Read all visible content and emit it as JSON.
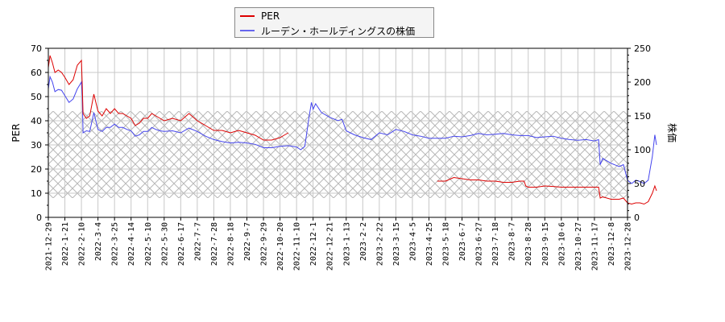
{
  "legend": {
    "items": [
      {
        "label": "PER",
        "color": "#dd0000"
      },
      {
        "label": "ルーデン・ホールディングスの株価",
        "color": "#4444ee"
      }
    ]
  },
  "axes": {
    "left_title": "PER",
    "right_title": "株価"
  },
  "chart_data": {
    "type": "line",
    "title": "",
    "xlabel": "",
    "ylabel": "PER",
    "y2label": "株価",
    "ylim": [
      0,
      70
    ],
    "y2lim": [
      0,
      250
    ],
    "yticks": [
      0,
      10,
      20,
      30,
      40,
      50,
      60,
      70
    ],
    "y2ticks": [
      0,
      50,
      100,
      150,
      200,
      250
    ],
    "grid": true,
    "hatched_band_per": [
      8,
      44
    ],
    "xticks": [
      "2021-12-29",
      "2022-1-21",
      "2022-2-10",
      "2022-3-4",
      "2022-3-25",
      "2022-4-14",
      "2022-5-10",
      "2022-5-30",
      "2022-6-17",
      "2022-7-7",
      "2022-7-28",
      "2022-8-18",
      "2022-9-7",
      "2022-9-29",
      "2022-10-20",
      "2022-11-10",
      "2022-12-1",
      "2022-12-21",
      "2023-1-13",
      "2023-2-2",
      "2023-2-22",
      "2023-3-15",
      "2023-4-5",
      "2023-4-25",
      "2023-5-18",
      "2023-6-7",
      "2023-6-27",
      "2023-7-18",
      "2023-8-7",
      "2023-8-28",
      "2023-9-15",
      "2023-10-6",
      "2023-10-27",
      "2023-11-17",
      "2023-12-8",
      "2023-12-28"
    ],
    "series": [
      {
        "name": "PER",
        "axis": "left",
        "color": "#dd0000",
        "segments": [
          [
            [
              0,
              62
            ],
            [
              0.2,
              67
            ],
            [
              0.5,
              64
            ],
            [
              0.8,
              60
            ],
            [
              1.2,
              61
            ],
            [
              1.6,
              60
            ],
            [
              2,
              58
            ],
            [
              2.5,
              55
            ],
            [
              3,
              57
            ],
            [
              3.5,
              63
            ],
            [
              4,
              65
            ],
            [
              4.1,
              55
            ],
            [
              4.2,
              43
            ],
            [
              4.6,
              41
            ],
            [
              5,
              42
            ],
            [
              5.5,
              51
            ],
            [
              6,
              44
            ],
            [
              6.5,
              42
            ],
            [
              7,
              45
            ],
            [
              7.5,
              43
            ],
            [
              8,
              45
            ],
            [
              8.5,
              43
            ],
            [
              9,
              43
            ],
            [
              9.5,
              42
            ],
            [
              10,
              41
            ],
            [
              10.5,
              38
            ],
            [
              11,
              39
            ],
            [
              11.5,
              41
            ],
            [
              12,
              41
            ],
            [
              12.5,
              43
            ],
            [
              13,
              42
            ],
            [
              13.5,
              41
            ],
            [
              14,
              40
            ],
            [
              15,
              41
            ],
            [
              16,
              40
            ],
            [
              17,
              43
            ],
            [
              18,
              40
            ],
            [
              19,
              38
            ],
            [
              20,
              36
            ],
            [
              21,
              36
            ],
            [
              22,
              35
            ],
            [
              23,
              36
            ],
            [
              24,
              35
            ],
            [
              25,
              34
            ],
            [
              26,
              32
            ],
            [
              27,
              32
            ],
            [
              28,
              33
            ],
            [
              28.5,
              34
            ],
            [
              29,
              35
            ]
          ]
        ],
        "segments_late": [
          [
            [
              47,
              15
            ],
            [
              48,
              15
            ],
            [
              49,
              16.5
            ],
            [
              50,
              16
            ],
            [
              51,
              15.5
            ],
            [
              52,
              15.5
            ],
            [
              53,
              15
            ],
            [
              54,
              15
            ],
            [
              55,
              14.5
            ],
            [
              56,
              14.5
            ],
            [
              57,
              15
            ],
            [
              57.5,
              15
            ],
            [
              57.7,
              13
            ],
            [
              58,
              12.5
            ],
            [
              59,
              12.5
            ],
            [
              60,
              13
            ],
            [
              61,
              12.8
            ],
            [
              62,
              12.5
            ],
            [
              63,
              12.5
            ],
            [
              64,
              12.5
            ],
            [
              65,
              12.5
            ],
            [
              66,
              12.5
            ],
            [
              66.5,
              12.5
            ],
            [
              66.7,
              8
            ],
            [
              67,
              8.5
            ],
            [
              68,
              7.5
            ],
            [
              69,
              7.5
            ],
            [
              69.5,
              8
            ],
            [
              70,
              6
            ],
            [
              70.5,
              5.5
            ],
            [
              71,
              6
            ],
            [
              71.5,
              6
            ],
            [
              72,
              5.5
            ],
            [
              72.5,
              6.5
            ],
            [
              73,
              10
            ],
            [
              73.3,
              13
            ],
            [
              73.5,
              11
            ]
          ]
        ]
      },
      {
        "name": "ルーデン・ホールディングスの株価",
        "axis": "right",
        "color": "#4444ee",
        "points": [
          [
            0,
            190
          ],
          [
            0.2,
            208
          ],
          [
            0.5,
            200
          ],
          [
            0.8,
            186
          ],
          [
            1.2,
            189
          ],
          [
            1.6,
            188
          ],
          [
            2,
            180
          ],
          [
            2.5,
            170
          ],
          [
            3,
            175
          ],
          [
            3.5,
            190
          ],
          [
            4,
            200
          ],
          [
            4.1,
            180
          ],
          [
            4.2,
            125
          ],
          [
            4.6,
            128
          ],
          [
            5,
            127
          ],
          [
            5.5,
            155
          ],
          [
            6,
            130
          ],
          [
            6.5,
            127
          ],
          [
            7,
            133
          ],
          [
            7.5,
            133
          ],
          [
            8,
            138
          ],
          [
            8.5,
            133
          ],
          [
            9,
            133
          ],
          [
            9.5,
            130
          ],
          [
            10,
            128
          ],
          [
            10.5,
            120
          ],
          [
            11,
            122
          ],
          [
            11.5,
            127
          ],
          [
            12,
            127
          ],
          [
            12.5,
            133
          ],
          [
            13,
            130
          ],
          [
            13.5,
            128
          ],
          [
            14,
            127
          ],
          [
            15,
            128
          ],
          [
            16,
            125
          ],
          [
            17,
            132
          ],
          [
            18,
            127
          ],
          [
            19,
            120
          ],
          [
            20,
            115
          ],
          [
            21,
            112
          ],
          [
            22,
            110
          ],
          [
            23,
            111
          ],
          [
            24,
            110
          ],
          [
            25,
            108
          ],
          [
            26,
            103
          ],
          [
            27,
            103
          ],
          [
            28,
            105
          ],
          [
            29,
            106
          ],
          [
            30,
            104
          ],
          [
            30.5,
            100
          ],
          [
            31,
            105
          ],
          [
            31.5,
            148
          ],
          [
            31.8,
            170
          ],
          [
            32,
            160
          ],
          [
            32.3,
            168
          ],
          [
            33,
            155
          ],
          [
            34,
            148
          ],
          [
            35,
            143
          ],
          [
            35.5,
            145
          ],
          [
            36,
            128
          ],
          [
            37,
            122
          ],
          [
            38,
            118
          ],
          [
            39,
            115
          ],
          [
            40,
            125
          ],
          [
            41,
            122
          ],
          [
            42,
            130
          ],
          [
            43,
            127
          ],
          [
            44,
            122
          ],
          [
            45,
            120
          ],
          [
            46,
            117
          ],
          [
            47,
            117
          ],
          [
            48,
            117
          ],
          [
            49,
            120
          ],
          [
            50,
            119
          ],
          [
            51,
            121
          ],
          [
            52,
            124
          ],
          [
            53,
            122
          ],
          [
            54,
            123
          ],
          [
            55,
            124
          ],
          [
            56,
            122
          ],
          [
            57,
            121
          ],
          [
            58,
            121
          ],
          [
            59,
            118
          ],
          [
            60,
            119
          ],
          [
            61,
            120
          ],
          [
            62,
            117
          ],
          [
            63,
            115
          ],
          [
            64,
            114
          ],
          [
            65,
            115
          ],
          [
            66,
            113
          ],
          [
            66.5,
            115
          ],
          [
            66.7,
            78
          ],
          [
            67,
            87
          ],
          [
            68,
            80
          ],
          [
            69,
            75
          ],
          [
            69.5,
            78
          ],
          [
            70,
            55
          ],
          [
            70.5,
            50
          ],
          [
            71,
            55
          ],
          [
            71.5,
            53
          ],
          [
            72,
            50
          ],
          [
            72.5,
            55
          ],
          [
            73,
            90
          ],
          [
            73.3,
            122
          ],
          [
            73.5,
            107
          ]
        ]
      }
    ]
  }
}
